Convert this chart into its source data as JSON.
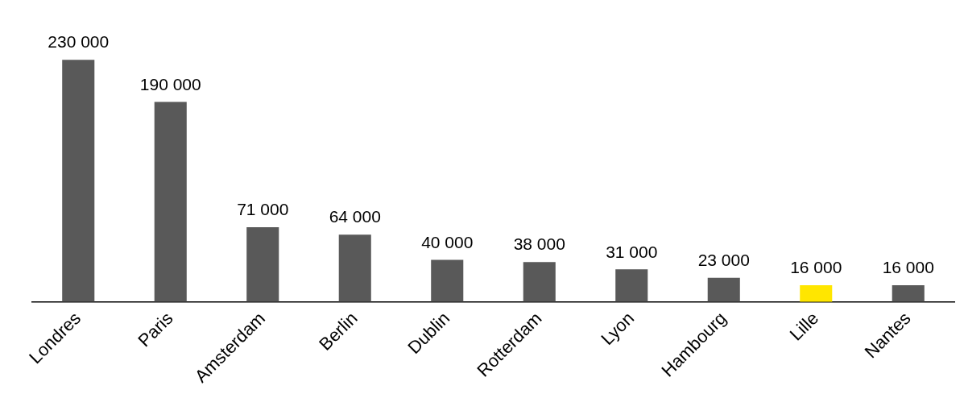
{
  "chart_data": {
    "type": "bar",
    "categories": [
      "Londres",
      "Paris",
      "Amsterdam",
      "Berlin",
      "Dublin",
      "Rotterdam",
      "Lyon",
      "Hambourg",
      "Lille",
      "Nantes"
    ],
    "values": [
      230000,
      190000,
      71000,
      64000,
      40000,
      38000,
      31000,
      23000,
      16000,
      16000
    ],
    "colors": [
      "#595959",
      "#595959",
      "#595959",
      "#595959",
      "#595959",
      "#595959",
      "#595959",
      "#595959",
      "#ffe600",
      "#595959"
    ],
    "value_labels": [
      "230 000",
      "190 000",
      "71 000",
      "64 000",
      "40 000",
      "38 000",
      "31 000",
      "23 000",
      "16 000",
      "16 000"
    ],
    "grid": false,
    "legend": false,
    "tick_labels": "x"
  }
}
